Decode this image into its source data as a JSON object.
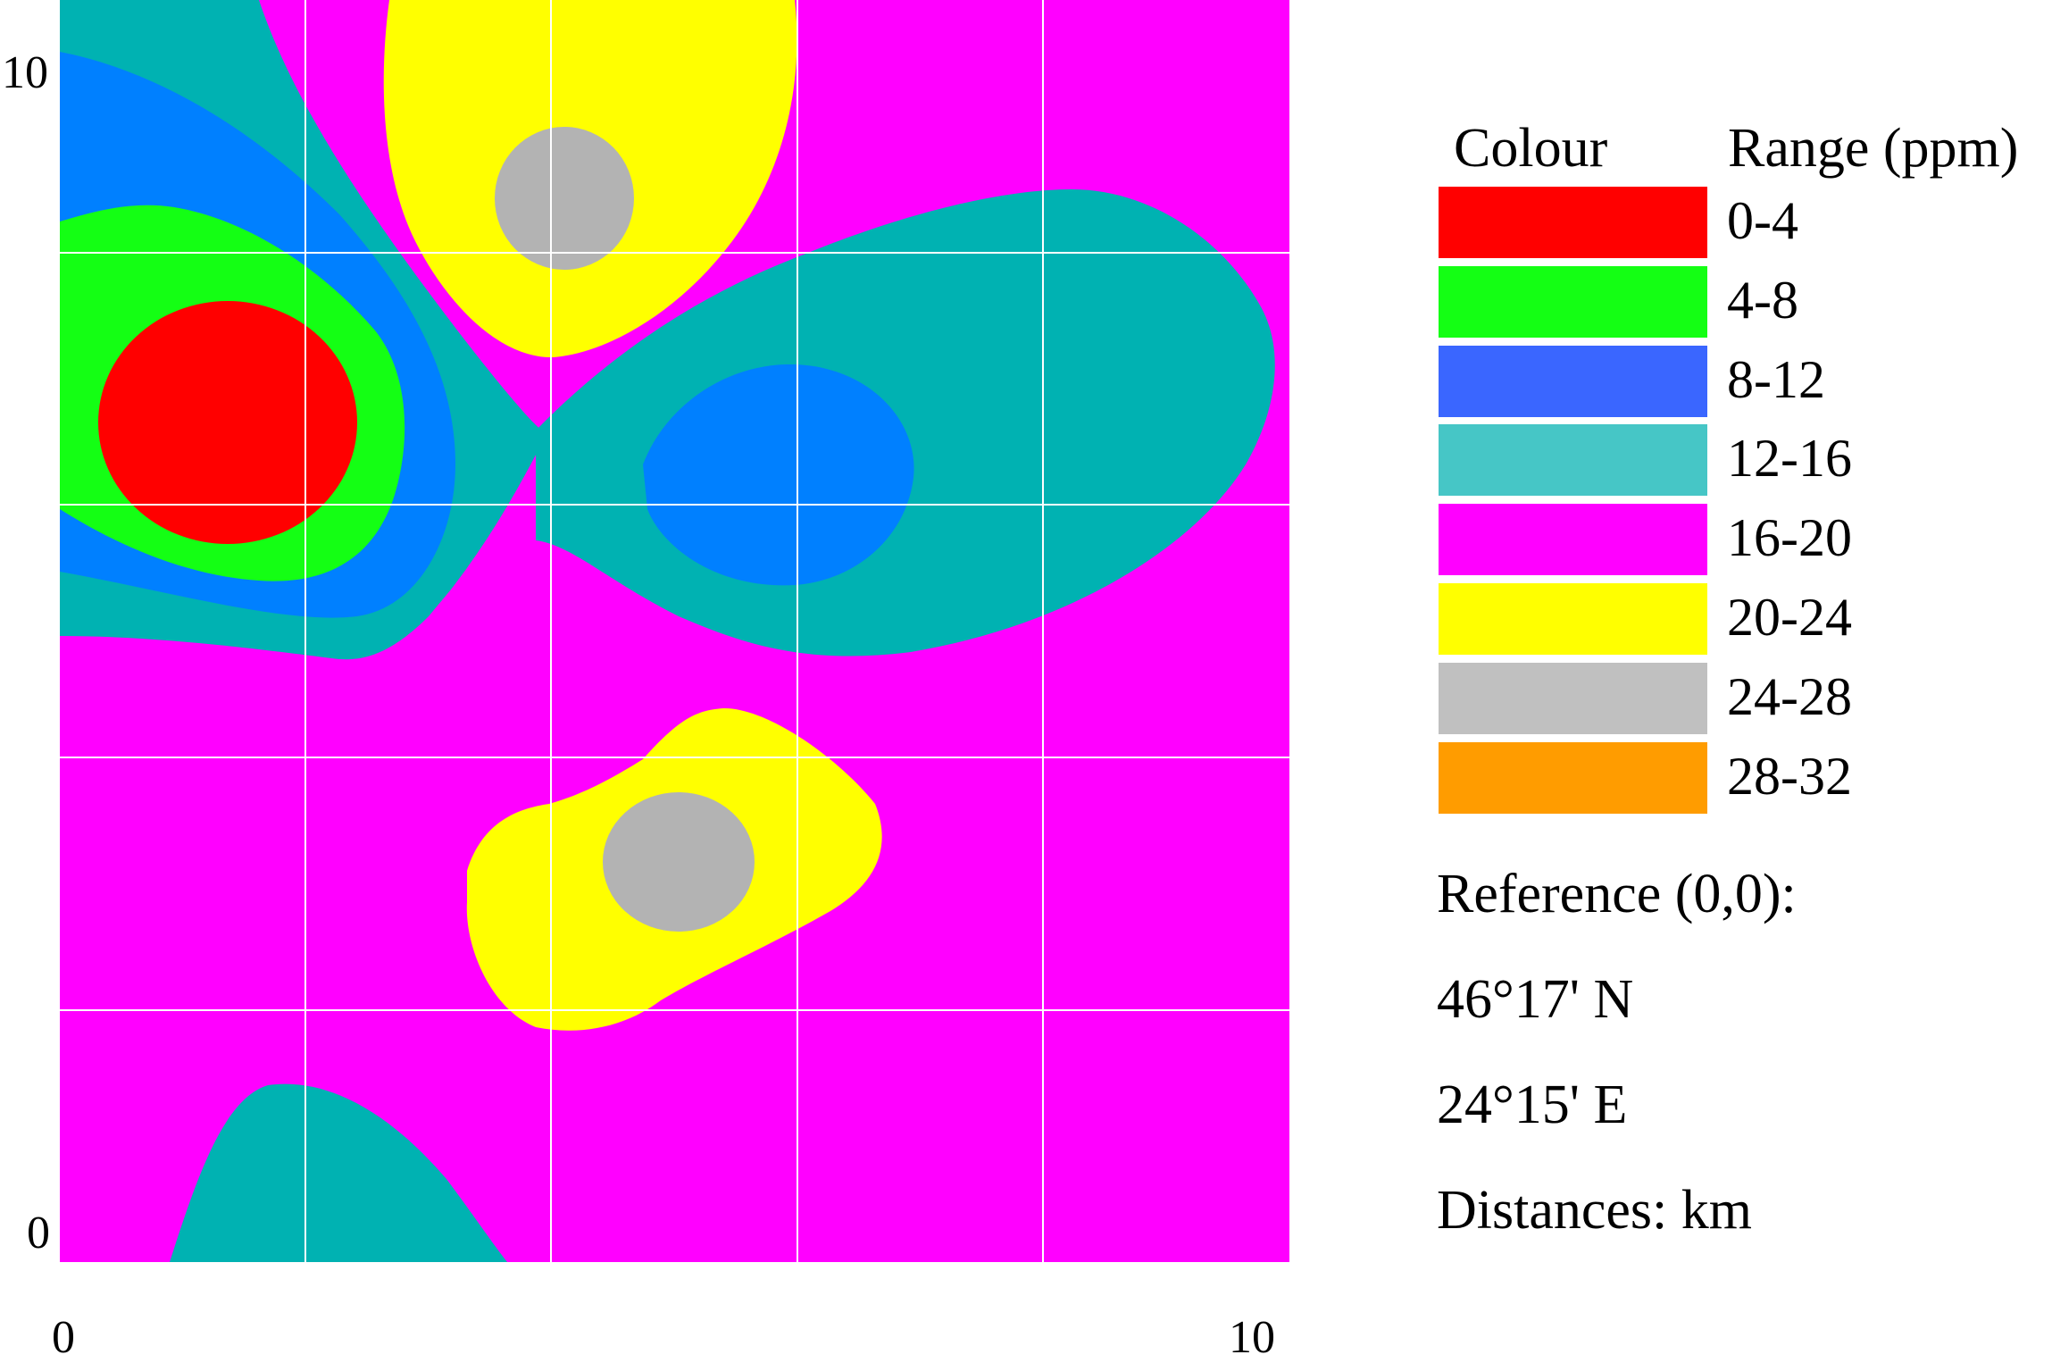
{
  "map": {
    "x_axis": {
      "min_label": "0",
      "max_label": "10",
      "range": [
        0,
        10
      ]
    },
    "y_axis": {
      "min_label": "0",
      "max_label": "10",
      "range": [
        0,
        10
      ]
    },
    "grid": true,
    "units": "km"
  },
  "legend": {
    "header_colour": "Colour",
    "header_range": "Range (ppm)",
    "items": [
      {
        "range": "0-4",
        "color": "#ff0000"
      },
      {
        "range": "4-8",
        "color": "#14ff14"
      },
      {
        "range": "8-12",
        "color": "#3a66ff"
      },
      {
        "range": "12-16",
        "color": "#46c6c6"
      },
      {
        "range": "16-20",
        "color": "#ff00ff"
      },
      {
        "range": "20-24",
        "color": "#ffff00"
      },
      {
        "range": "24-28",
        "color": "#c0c0c0"
      },
      {
        "range": "28-32",
        "color": "#ff9c00"
      }
    ]
  },
  "map_colors": {
    "background": "#ff00ff",
    "band_12_16": "#00b2b2",
    "band_8_12": "#0080ff",
    "band_4_8": "#14ff14",
    "band_0_4": "#ff0000",
    "band_20_24": "#ffff00",
    "band_24_28": "#b3b3b3"
  },
  "info": {
    "reference": "Reference (0,0):",
    "latitude": "46°17' N",
    "longitude": "24°15' E",
    "distances": "Distances: km"
  }
}
